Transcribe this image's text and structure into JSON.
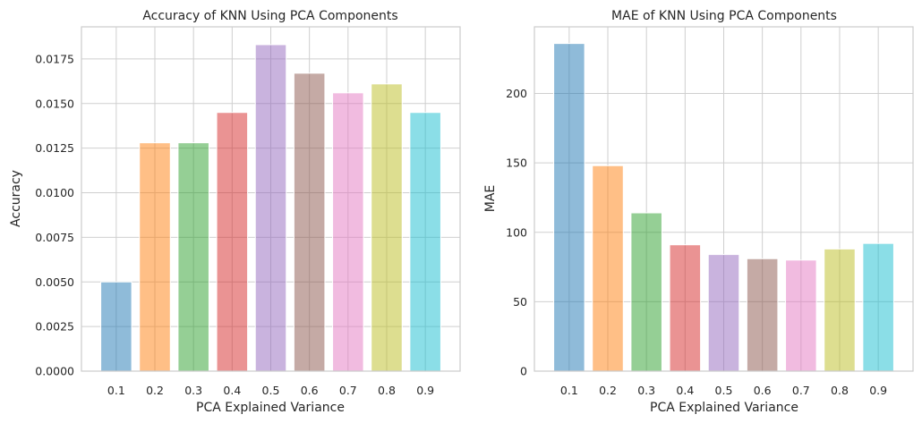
{
  "chart_data": [
    {
      "type": "bar",
      "title": "Accuracy of KNN Using PCA Components",
      "xlabel": "PCA Explained Variance",
      "ylabel": "Accuracy",
      "categories": [
        "0.1",
        "0.2",
        "0.3",
        "0.4",
        "0.5",
        "0.6",
        "0.7",
        "0.8",
        "0.9"
      ],
      "values": [
        0.005,
        0.0128,
        0.0128,
        0.0145,
        0.0183,
        0.0167,
        0.0156,
        0.0161,
        0.0145
      ],
      "ylim": [
        0,
        0.0193
      ],
      "yticks": [
        0.0,
        0.0025,
        0.005,
        0.0075,
        0.01,
        0.0125,
        0.015,
        0.0175
      ],
      "ytick_labels": [
        "0.0000",
        "0.0025",
        "0.0050",
        "0.0075",
        "0.0100",
        "0.0125",
        "0.0150",
        "0.0175"
      ],
      "grid": true
    },
    {
      "type": "bar",
      "title": "MAE of KNN Using PCA Components",
      "xlabel": "PCA Explained Variance",
      "ylabel": "MAE",
      "categories": [
        "0.1",
        "0.2",
        "0.3",
        "0.4",
        "0.5",
        "0.6",
        "0.7",
        "0.8",
        "0.9"
      ],
      "values": [
        236,
        148,
        114,
        91,
        84,
        81,
        80,
        88,
        92
      ],
      "ylim": [
        0,
        248
      ],
      "yticks": [
        0,
        50,
        100,
        150,
        200
      ],
      "ytick_labels": [
        "0",
        "50",
        "100",
        "150",
        "200"
      ],
      "grid": true
    }
  ],
  "colors": [
    "#1f77b4",
    "#ff7f0e",
    "#2ca02c",
    "#d62728",
    "#9467bd",
    "#8c564b",
    "#e377c2",
    "#bcbd22",
    "#17becf"
  ],
  "bar_alpha": 0.5
}
